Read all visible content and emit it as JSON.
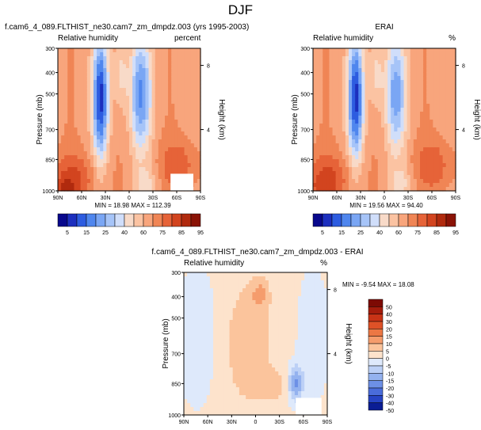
{
  "figure": {
    "title": "DJF"
  },
  "panels": [
    {
      "title": "f.cam6_4_089.FLTHIST_ne30.cam7_zm_dmpdz.003 (yrs 1995-2003)",
      "left_label": "Relative humidity",
      "right_label": "percent",
      "stats": "MIN = 18.98  MAX = 112.39"
    },
    {
      "title": "ERAI",
      "left_label": "Relative humidity",
      "right_label": "%",
      "stats": "MIN = 19.56  MAX = 94.40"
    },
    {
      "title": "f.cam6_4_089.FLTHIST_ne30.cam7_zm_dmpdz.003 - ERAI",
      "left_label": "Relative humidity",
      "right_label": "%",
      "stats": "MIN = -9.54  MAX = 18.08"
    }
  ],
  "chart_data": [
    {
      "type": "heatmap",
      "title": "f.cam6_4_089.FLTHIST_ne30.cam7_zm_dmpdz.003 (yrs 1995-2003)",
      "xlabel": "",
      "ylabel": "Pressure (mb)",
      "y2label": "Height (km)",
      "x_ticks": [
        "90N",
        "60N",
        "30N",
        "0",
        "30S",
        "60S",
        "90S"
      ],
      "y_ticks": [
        "300",
        "400",
        "500",
        "700",
        "850",
        "1000"
      ],
      "y2_ticks": [
        "8",
        "4"
      ],
      "colorbar_levels": [
        "5",
        "15",
        "25",
        "40",
        "60",
        "75",
        "85",
        "95"
      ],
      "min": 18.98,
      "max": 112.39
    },
    {
      "type": "heatmap",
      "title": "ERAI",
      "xlabel": "",
      "ylabel": "Pressure (mb)",
      "y2label": "Height (km)",
      "x_ticks": [
        "90N",
        "60N",
        "30N",
        "0",
        "30S",
        "60S",
        "90S"
      ],
      "y_ticks": [
        "300",
        "400",
        "500",
        "700",
        "850",
        "1000"
      ],
      "y2_ticks": [
        "8",
        "4"
      ],
      "colorbar_levels": [
        "5",
        "15",
        "25",
        "40",
        "60",
        "75",
        "85",
        "95"
      ],
      "min": 19.56,
      "max": 94.4
    },
    {
      "type": "heatmap",
      "title": "f.cam6_4_089.FLTHIST_ne30.cam7_zm_dmpdz.003 - ERAI",
      "xlabel": "",
      "ylabel": "Pressure (mb)",
      "y2label": "Height (km)",
      "x_ticks": [
        "90N",
        "60N",
        "30N",
        "0",
        "30S",
        "60S",
        "90S"
      ],
      "y_ticks": [
        "300",
        "400",
        "500",
        "700",
        "850",
        "1000"
      ],
      "y2_ticks": [
        "8",
        "4"
      ],
      "colorbar_levels": [
        "50",
        "40",
        "30",
        "20",
        "15",
        "10",
        "5",
        "0",
        "-5",
        "-10",
        "-15",
        "-20",
        "-30",
        "-40",
        "-50"
      ],
      "min": -9.54,
      "max": 18.08
    }
  ],
  "colors": {
    "rh_scale": [
      "#08088c",
      "#1c2fbe",
      "#2d5ce0",
      "#4f86ee",
      "#7aa6f4",
      "#a6c4f8",
      "#d0defa",
      "#f8dac8",
      "#fbc3a2",
      "#f8a57c",
      "#f08555",
      "#e66338",
      "#d2441f",
      "#b02a0e",
      "#8a1306"
    ],
    "diff_scale": [
      "#7d0a04",
      "#a51c0c",
      "#c83316",
      "#de5127",
      "#ec7744",
      "#f59c6c",
      "#fbc49c",
      "#fde3cc",
      "#dee9fb",
      "#bcd0f6",
      "#94b2ef",
      "#6d90e6",
      "#4a6cda",
      "#2744c4",
      "#0b1d94"
    ]
  }
}
